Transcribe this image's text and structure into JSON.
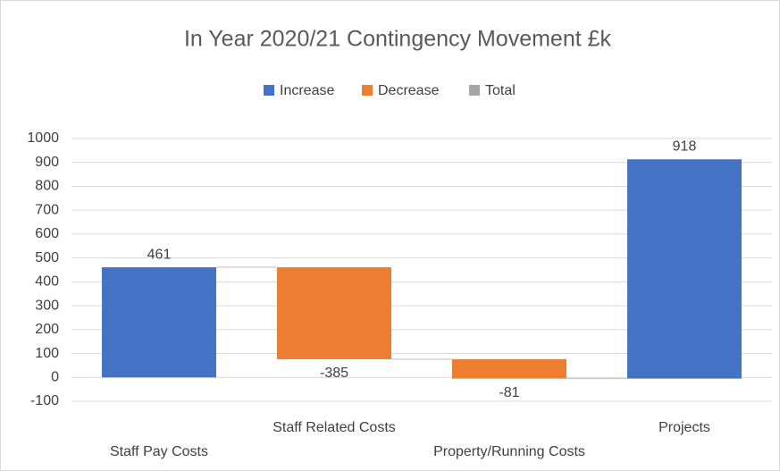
{
  "chart_data": {
    "type": "waterfall",
    "title": "In Year 2020/21 Contingency Movement £k",
    "legend": [
      {
        "name": "Increase",
        "color": "#4472c4"
      },
      {
        "name": "Decrease",
        "color": "#ed7d31"
      },
      {
        "name": "Total",
        "color": "#a5a5a5"
      }
    ],
    "categories": [
      "Staff Pay Costs",
      "Staff Related Costs",
      "Property/Running Costs",
      "Projects"
    ],
    "values": [
      461,
      -385,
      -81,
      918
    ],
    "ylim": [
      -100,
      1000
    ],
    "yticks": [
      -100,
      0,
      100,
      200,
      300,
      400,
      500,
      600,
      700,
      800,
      900,
      1000
    ],
    "grid": true
  }
}
